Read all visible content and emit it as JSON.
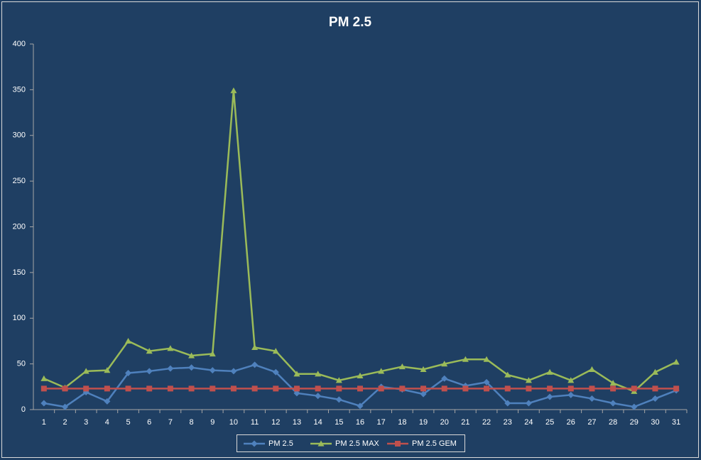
{
  "chart_data": {
    "type": "line",
    "title": "PM 2.5",
    "categories": [
      "1",
      "2",
      "3",
      "4",
      "5",
      "6",
      "7",
      "8",
      "9",
      "10",
      "11",
      "12",
      "13",
      "14",
      "15",
      "16",
      "17",
      "18",
      "19",
      "20",
      "21",
      "22",
      "23",
      "24",
      "25",
      "26",
      "27",
      "28",
      "29",
      "30",
      "31"
    ],
    "series": [
      {
        "name": "PM 2.5",
        "color": "#4f81bd",
        "marker": "diamond",
        "values": [
          7,
          3,
          19,
          9,
          40,
          42,
          45,
          46,
          43,
          42,
          49,
          41,
          18,
          15,
          11,
          4,
          25,
          22,
          17,
          34,
          26,
          30,
          7,
          7,
          14,
          16,
          12,
          7,
          3,
          12,
          21
        ]
      },
      {
        "name": "PM 2.5 MAX",
        "color": "#9bbb59",
        "marker": "triangle",
        "values": [
          34,
          24,
          42,
          43,
          75,
          64,
          67,
          59,
          61,
          349,
          68,
          64,
          39,
          39,
          32,
          37,
          42,
          47,
          44,
          50,
          55,
          55,
          38,
          32,
          41,
          32,
          44,
          29,
          20,
          41,
          52
        ]
      },
      {
        "name": "PM 2.5 GEM",
        "color": "#c0504d",
        "marker": "square",
        "values": [
          23,
          23,
          23,
          23,
          23,
          23,
          23,
          23,
          23,
          23,
          23,
          23,
          23,
          23,
          23,
          23,
          23,
          23,
          23,
          23,
          23,
          23,
          23,
          23,
          23,
          23,
          23,
          23,
          23,
          23,
          23
        ]
      }
    ],
    "ylim": [
      0,
      400
    ],
    "yticks": [
      0,
      50,
      100,
      150,
      200,
      250,
      300,
      350,
      400
    ],
    "grid": false,
    "legend": "bottom"
  }
}
